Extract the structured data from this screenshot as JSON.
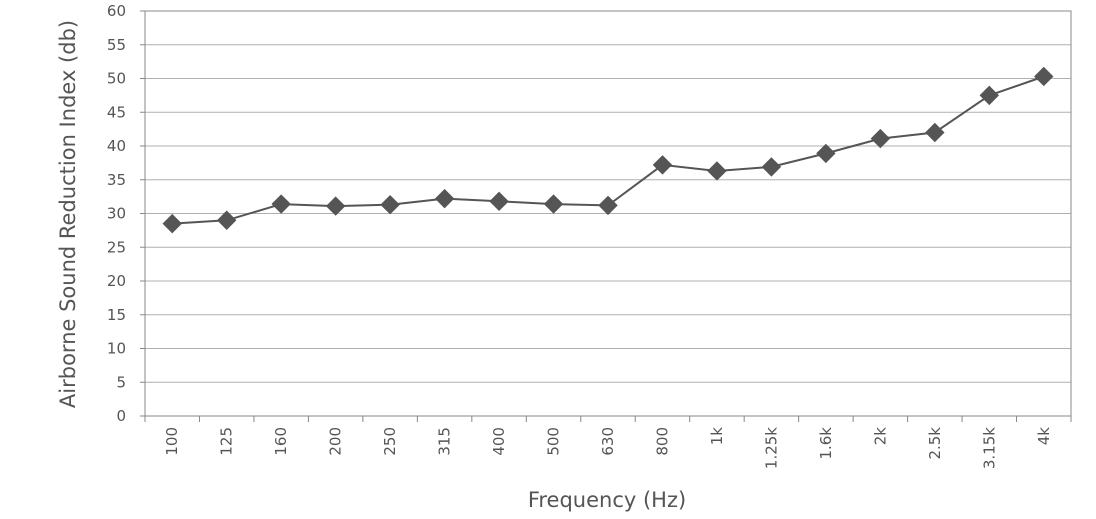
{
  "chart_data": {
    "type": "line",
    "title": "",
    "xlabel": "Frequency (Hz)",
    "ylabel": "Airborne Sound Reduction Index (db)",
    "categories": [
      "100",
      "125",
      "160",
      "200",
      "250",
      "315",
      "400",
      "500",
      "630",
      "800",
      "1k",
      "1.25k",
      "1.6k",
      "2k",
      "2.5k",
      "3.15k",
      "4k"
    ],
    "series": [
      {
        "values": [
          28.5,
          29,
          31.4,
          31.1,
          31.3,
          32.2,
          31.8,
          31.4,
          31.2,
          37.2,
          36.3,
          36.9,
          38.9,
          41.1,
          42,
          47.5,
          50.3
        ],
        "color": "#555555",
        "marker": "diamond"
      }
    ],
    "ylim": [
      0,
      60
    ],
    "yticks": [
      0,
      5,
      10,
      15,
      20,
      25,
      30,
      35,
      40,
      45,
      50,
      55,
      60
    ],
    "grid": "horizontal",
    "legend": "none"
  }
}
